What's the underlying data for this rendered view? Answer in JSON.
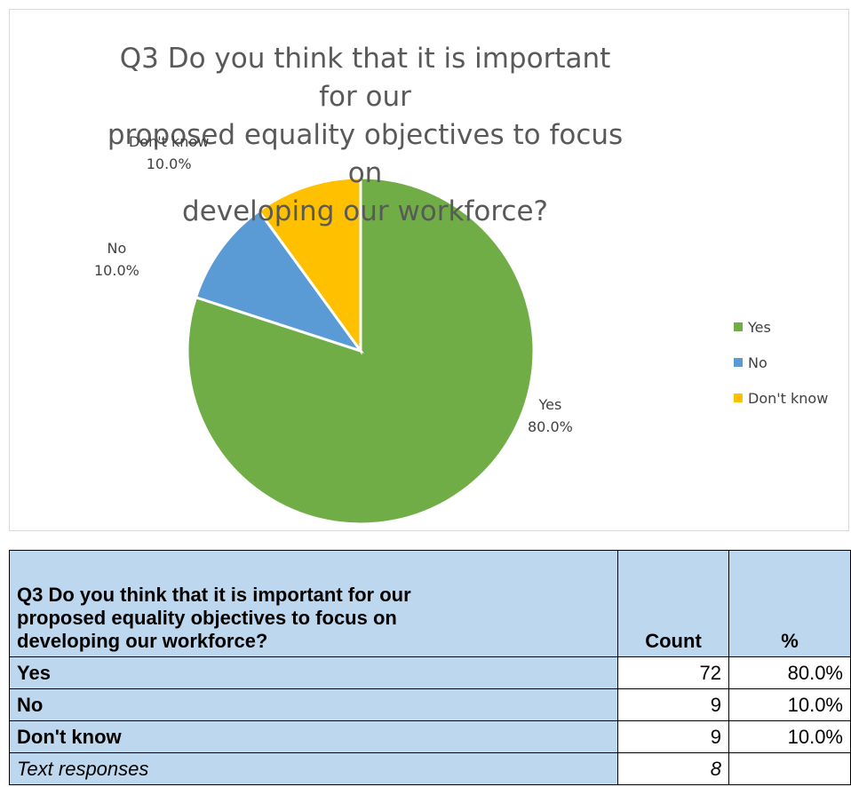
{
  "chart_data": {
    "type": "pie",
    "title_lines": [
      "Q3 Do you think that it is important for our",
      "proposed equality objectives to focus on",
      "developing our workforce?"
    ],
    "categories": [
      "Yes",
      "No",
      "Don't know"
    ],
    "values": [
      80.0,
      10.0,
      10.0
    ],
    "labels": [
      "80.0%",
      "10.0%",
      "10.0%"
    ],
    "colors": [
      "#70ad47",
      "#5b9bd5",
      "#ffc000"
    ],
    "legend_placement": "right"
  },
  "table": {
    "header": {
      "question_lines": [
        "Q3 Do you think that it is important for our",
        "proposed equality objectives to focus on",
        "developing our workforce?"
      ],
      "count": "Count",
      "percent": "%"
    },
    "rows": [
      {
        "label": "Yes",
        "count": "72",
        "percent": "80.0%"
      },
      {
        "label": "No",
        "count": "9",
        "percent": "10.0%"
      },
      {
        "label": "Don't know",
        "count": "9",
        "percent": "10.0%"
      },
      {
        "label": "Text responses",
        "count": "8",
        "percent": ""
      }
    ]
  }
}
